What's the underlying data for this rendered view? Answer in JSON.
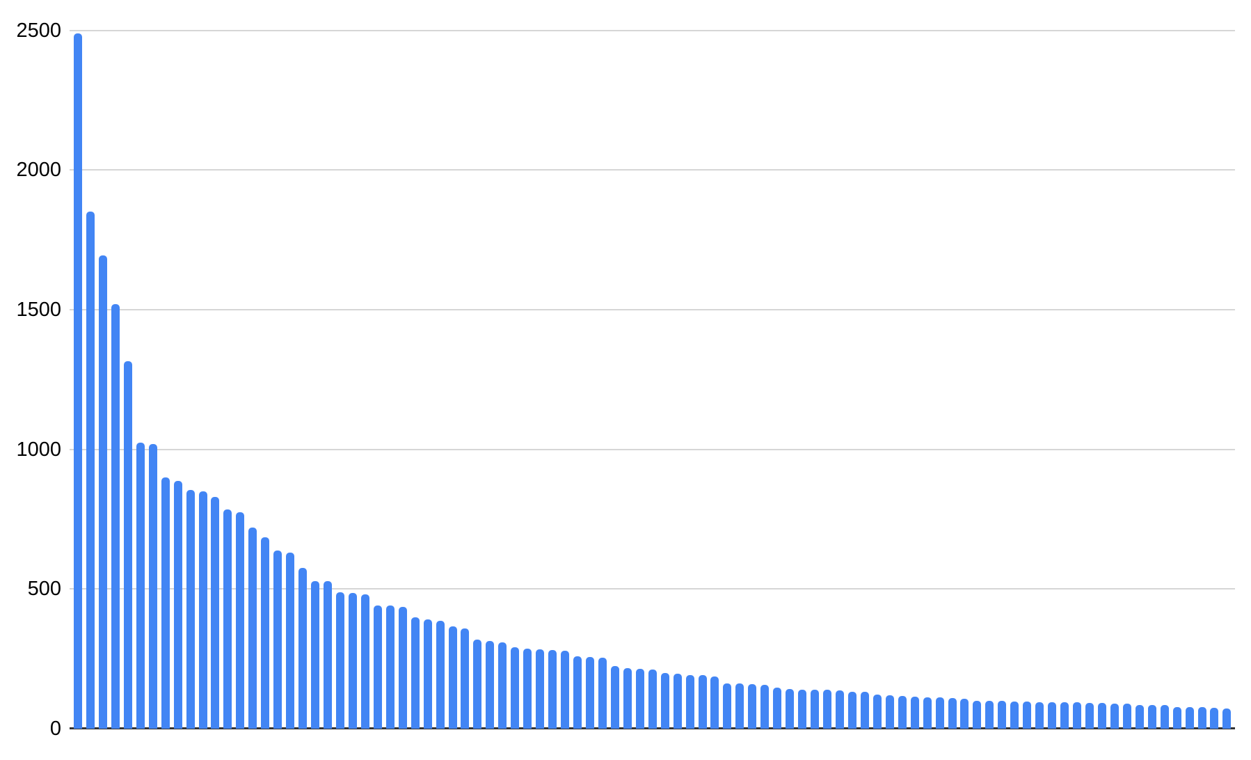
{
  "chart_data": {
    "type": "bar",
    "title": "",
    "xlabel": "",
    "ylabel": "",
    "ylim": [
      0,
      2500
    ],
    "yticks": [
      0,
      500,
      1000,
      1500,
      2000,
      2500
    ],
    "ytick_labels": [
      "0",
      "500",
      "1000",
      "1500",
      "2000",
      "2500"
    ],
    "x_tick_labels": [],
    "grid": true,
    "legend": false,
    "bar_color": "#4285f4",
    "gridline_color": "#d6d6d6",
    "axis_line_color": "#333333",
    "label_color": "#000000",
    "background_color": "#ffffff",
    "values": [
      2490,
      1850,
      1695,
      1520,
      1315,
      1025,
      1020,
      900,
      886,
      855,
      850,
      830,
      786,
      775,
      720,
      686,
      638,
      630,
      575,
      529,
      527,
      488,
      485,
      482,
      441,
      440,
      436,
      398,
      390,
      387,
      366,
      360,
      318,
      315,
      310,
      291,
      286,
      283,
      282,
      280,
      260,
      256,
      254,
      225,
      216,
      215,
      213,
      200,
      196,
      193,
      191,
      188,
      163,
      161,
      159,
      158,
      146,
      141,
      140,
      140,
      139,
      137,
      133,
      131,
      121,
      119,
      117,
      115,
      113,
      112,
      110,
      108,
      100,
      99,
      99,
      98,
      96,
      95,
      95,
      94,
      94,
      93,
      92,
      90,
      89,
      85,
      84,
      84,
      78,
      78,
      77,
      74,
      73
    ]
  }
}
